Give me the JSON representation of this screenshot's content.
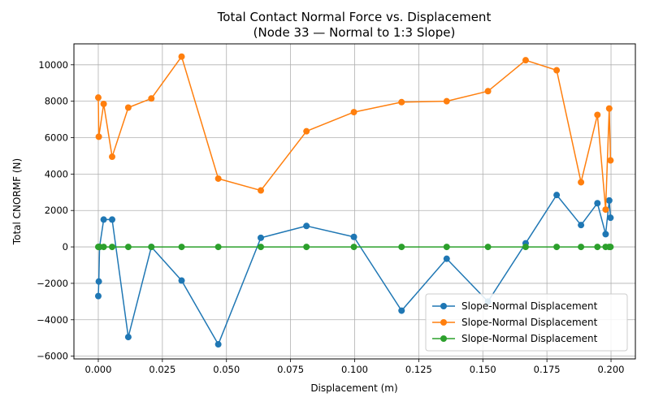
{
  "chart_data": {
    "type": "line",
    "title": "Total Contact Normal Force vs. Displacement",
    "subtitle": "(Node 33 — Normal to 1:3 Slope)",
    "xlabel": "Displacement (m)",
    "ylabel": "Total CNORMF (N)",
    "xlim": [
      -0.0095,
      0.2095
    ],
    "ylim": [
      -6150,
      11150
    ],
    "xticks": [
      0.0,
      0.025,
      0.05,
      0.075,
      0.1,
      0.125,
      0.15,
      0.175,
      0.2
    ],
    "xtick_labels": [
      "0.000",
      "0.025",
      "0.050",
      "0.075",
      "0.100",
      "0.125",
      "0.150",
      "0.175",
      "0.200"
    ],
    "yticks": [
      -6000,
      -4000,
      -2000,
      0,
      2000,
      4000,
      6000,
      8000,
      10000
    ],
    "ytick_labels": [
      "−6000",
      "−4000",
      "−2000",
      "0",
      "2000",
      "4000",
      "6000",
      "8000",
      "10000"
    ],
    "grid": true,
    "legend_position": "lower-right",
    "series": [
      {
        "name": "Slope-Normal Displacement",
        "color": "#1f77b4",
        "x": [
          0.0,
          0.0002,
          0.0005,
          0.0021,
          0.0054,
          0.0117,
          0.0207,
          0.0325,
          0.0468,
          0.0634,
          0.0812,
          0.0997,
          0.1183,
          0.1359,
          0.152,
          0.1667,
          0.1788,
          0.1883,
          0.1947,
          0.1979,
          0.1993,
          0.1998
        ],
        "y": [
          -2700,
          -1900,
          0,
          1500,
          1500,
          -4950,
          0,
          -1850,
          -5350,
          500,
          1150,
          550,
          -3500,
          -650,
          -3000,
          200,
          2850,
          1200,
          2400,
          700,
          2550,
          1600
        ]
      },
      {
        "name": "Slope-Normal Displacement",
        "color": "#ff7f0e",
        "x": [
          0.0,
          0.0002,
          0.0021,
          0.0054,
          0.0117,
          0.0207,
          0.0325,
          0.0468,
          0.0634,
          0.0812,
          0.0997,
          0.1183,
          0.1359,
          0.152,
          0.1667,
          0.1788,
          0.1883,
          0.1947,
          0.1979,
          0.1993,
          0.1998
        ],
        "y": [
          8200,
          6050,
          7850,
          4950,
          7650,
          8150,
          10450,
          3750,
          3100,
          6350,
          7400,
          7950,
          8000,
          8550,
          10250,
          9700,
          3550,
          7250,
          2050,
          7600,
          4750
        ]
      },
      {
        "name": "Slope-Normal Displacement",
        "color": "#2ca02c",
        "x": [
          0.0,
          0.0002,
          0.0005,
          0.0021,
          0.0054,
          0.0117,
          0.0207,
          0.0325,
          0.0468,
          0.0634,
          0.0812,
          0.0997,
          0.1183,
          0.1359,
          0.152,
          0.1667,
          0.1788,
          0.1883,
          0.1947,
          0.1979,
          0.1993,
          0.1998
        ],
        "y": [
          0,
          0,
          0,
          0,
          0,
          0,
          0,
          0,
          0,
          0,
          0,
          0,
          0,
          0,
          0,
          0,
          0,
          0,
          0,
          0,
          0,
          0
        ]
      }
    ]
  }
}
